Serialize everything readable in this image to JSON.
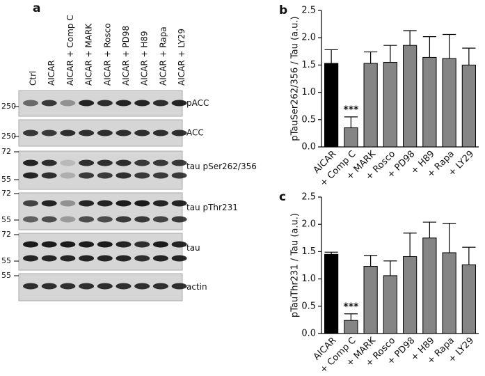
{
  "blot": {
    "panel_label": "a",
    "lanes": [
      "Ctrl",
      "AICAR",
      "AICAR + Comp C",
      "AICAR + MARK",
      "AICAR + Rosco",
      "AICAR + PD98",
      "AICAR + H89",
      "AICAR + Rapa",
      "AICAR + LY29"
    ],
    "rows": [
      {
        "label": "pACC",
        "markers": [
          "250"
        ]
      },
      {
        "label": "ACC",
        "markers": [
          "250"
        ]
      },
      {
        "label": "tau pSer262/356",
        "markers": [
          "72",
          "55"
        ]
      },
      {
        "label": "tau pThr231",
        "markers": [
          "72",
          "55"
        ]
      },
      {
        "label": "tau",
        "markers": [
          "72",
          "55"
        ]
      },
      {
        "label": "actin",
        "markers": [
          "55"
        ]
      }
    ]
  },
  "chart_data": [
    {
      "type": "bar",
      "panel_label": "b",
      "y_label": "pTauSer262/356 / Tau (a.u.)",
      "categories": [
        "AICAR",
        "+ Comp C",
        "+ MARK",
        "+ Rosco",
        "+ PD98",
        "+ H89",
        "+ Rapa",
        "+ LY29"
      ],
      "values": [
        1.53,
        0.35,
        1.53,
        1.55,
        1.86,
        1.64,
        1.62,
        1.5
      ],
      "errors": [
        0.25,
        0.2,
        0.21,
        0.31,
        0.27,
        0.38,
        0.44,
        0.31
      ],
      "colors": [
        "#000000",
        "#858585",
        "#858585",
        "#858585",
        "#858585",
        "#858585",
        "#858585",
        "#858585"
      ],
      "value_annotations": [
        null,
        "***",
        null,
        null,
        null,
        null,
        null,
        null
      ],
      "ylim": [
        0,
        2.5
      ],
      "yticks": [
        {
          "value": 0,
          "label": "0.0"
        },
        0.5,
        {
          "value": 1,
          "label": "1.0"
        },
        1.5,
        {
          "value": 2,
          "label": "2.0"
        },
        2.5
      ]
    },
    {
      "type": "bar",
      "panel_label": "c",
      "y_label": "pTauThr231 / Tau (a.u.)",
      "categories": [
        "AICAR",
        "+ Comp C",
        "+ MARK",
        "+ Rosco",
        "+ PD98",
        "+ H89",
        "+ Rapa",
        "+ LY29"
      ],
      "values": [
        1.45,
        0.24,
        1.23,
        1.06,
        1.41,
        1.75,
        1.48,
        1.26
      ],
      "errors": [
        0.04,
        0.12,
        0.2,
        0.27,
        0.43,
        0.29,
        0.54,
        0.32
      ],
      "colors": [
        "#000000",
        "#858585",
        "#858585",
        "#858585",
        "#858585",
        "#858585",
        "#858585",
        "#858585"
      ],
      "value_annotations": [
        null,
        "***",
        null,
        null,
        null,
        null,
        null,
        null
      ],
      "ylim": [
        0,
        2.5
      ],
      "yticks": [
        {
          "value": 0,
          "label": "0.0"
        },
        0.5,
        {
          "value": 1,
          "label": "1.0"
        },
        1.5,
        {
          "value": 2,
          "label": "2.0"
        },
        2.5
      ]
    }
  ]
}
